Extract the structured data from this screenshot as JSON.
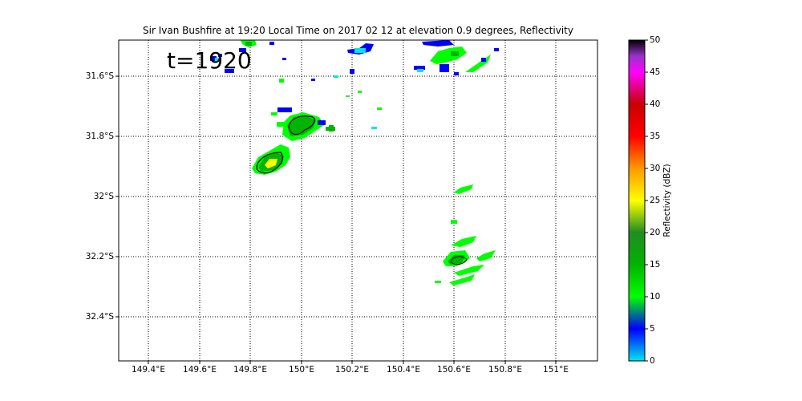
{
  "title": "Sir Ivan Bushfire at 19:20 Local Time on 2017 02 12 at elevation 0.9 degrees, Reflectivity",
  "timestamp_label": "t=1920",
  "lat_labels": [
    "31.6°S",
    "31.8°S",
    "32°S",
    "32.2°S",
    "32.4°S"
  ],
  "lon_labels": [
    "149.4°E",
    "149.6°E",
    "149.8°E",
    "150°E",
    "150.2°E",
    "150.4°E",
    "150.6°E",
    "150.8°E",
    "151°E"
  ],
  "colorbar": {
    "label": "Reflectivity (dBZ)",
    "ticks": [
      "50",
      "45",
      "40",
      "35",
      "30",
      "25",
      "20",
      "15",
      "10",
      "5",
      "0"
    ],
    "colors": [
      "#00e5ee",
      "#0000ff",
      "#00ff00",
      "#00b400",
      "#ffff00",
      "#ff9900",
      "#ff0000",
      "#c80000",
      "#ff00ff",
      "#9932cc",
      "#000000"
    ]
  },
  "echo_colors": {
    "weak": "#0000ff",
    "light": "#00e5ee",
    "moderate": "#00ff00",
    "strong": "#00b400",
    "intense": "#ffff00",
    "contour": "#000000"
  }
}
